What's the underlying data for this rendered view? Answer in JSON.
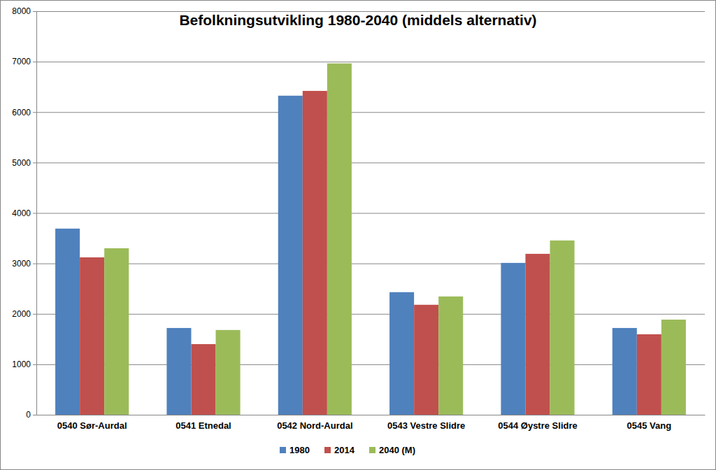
{
  "chart_data": {
    "type": "bar",
    "title": "Befolkningsutvikling 1980-2040 (middels alternativ)",
    "categories": [
      "0540 Sør-Aurdal",
      "0541 Etnedal",
      "0542 Nord-Aurdal",
      "0543 Vestre Slidre",
      "0544 Øystre Slidre",
      "0545 Vang"
    ],
    "series": [
      {
        "name": "1980",
        "color": "#4f81bd",
        "values": [
          3690,
          1720,
          6325,
          2430,
          3010,
          1720
        ]
      },
      {
        "name": "2014",
        "color": "#c0504d",
        "values": [
          3120,
          1400,
          6420,
          2180,
          3190,
          1595
        ]
      },
      {
        "name": "2040 (M)",
        "color": "#9bbb59",
        "values": [
          3300,
          1680,
          6965,
          2345,
          3455,
          1886
        ]
      }
    ],
    "ylim": [
      0,
      8000
    ],
    "yticks": [
      0,
      1000,
      2000,
      3000,
      4000,
      5000,
      6000,
      7000,
      8000
    ],
    "grid": true,
    "legend": "bottom"
  }
}
